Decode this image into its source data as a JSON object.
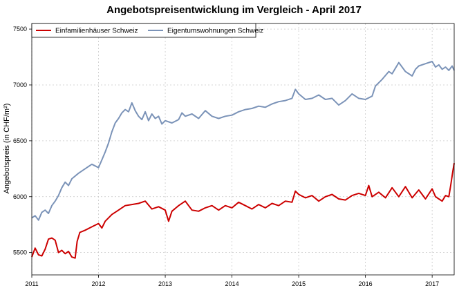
{
  "chart_data": {
    "type": "line",
    "title": "Angebotspreisentwicklung im Vergleich - April 2017",
    "ylabel": "Angebotspreis (in CHF/m²)",
    "xlabel": "",
    "xlim": [
      2011.0,
      2017.33
    ],
    "ylim": [
      5300,
      7550
    ],
    "x_ticks": [
      2011,
      2012,
      2013,
      2014,
      2015,
      2016,
      2017
    ],
    "x_tick_labels": [
      "2011",
      "2012",
      "2013",
      "2014",
      "2015",
      "2016",
      "2017"
    ],
    "y_ticks": [
      5500,
      6000,
      6500,
      7000,
      7500
    ],
    "y_tick_labels": [
      "5500",
      "6000",
      "6500",
      "7000",
      "7500"
    ],
    "grid": true,
    "legend_position": "top-left",
    "series": [
      {
        "name": "Einfamilienhäuser Schweiz",
        "color": "#cc0000",
        "points": [
          [
            2011.0,
            5460
          ],
          [
            2011.05,
            5540
          ],
          [
            2011.1,
            5480
          ],
          [
            2011.15,
            5470
          ],
          [
            2011.2,
            5530
          ],
          [
            2011.25,
            5620
          ],
          [
            2011.3,
            5630
          ],
          [
            2011.35,
            5610
          ],
          [
            2011.4,
            5500
          ],
          [
            2011.45,
            5520
          ],
          [
            2011.5,
            5490
          ],
          [
            2011.55,
            5510
          ],
          [
            2011.6,
            5460
          ],
          [
            2011.65,
            5450
          ],
          [
            2011.68,
            5600
          ],
          [
            2011.72,
            5680
          ],
          [
            2011.8,
            5700
          ],
          [
            2011.9,
            5730
          ],
          [
            2012.0,
            5760
          ],
          [
            2012.05,
            5720
          ],
          [
            2012.1,
            5780
          ],
          [
            2012.2,
            5840
          ],
          [
            2012.3,
            5880
          ],
          [
            2012.4,
            5920
          ],
          [
            2012.5,
            5930
          ],
          [
            2012.6,
            5940
          ],
          [
            2012.7,
            5960
          ],
          [
            2012.8,
            5890
          ],
          [
            2012.9,
            5910
          ],
          [
            2013.0,
            5880
          ],
          [
            2013.05,
            5780
          ],
          [
            2013.1,
            5870
          ],
          [
            2013.2,
            5920
          ],
          [
            2013.3,
            5960
          ],
          [
            2013.4,
            5880
          ],
          [
            2013.5,
            5870
          ],
          [
            2013.6,
            5900
          ],
          [
            2013.7,
            5920
          ],
          [
            2013.8,
            5880
          ],
          [
            2013.9,
            5920
          ],
          [
            2014.0,
            5900
          ],
          [
            2014.1,
            5950
          ],
          [
            2014.2,
            5920
          ],
          [
            2014.3,
            5890
          ],
          [
            2014.4,
            5930
          ],
          [
            2014.5,
            5900
          ],
          [
            2014.6,
            5940
          ],
          [
            2014.7,
            5920
          ],
          [
            2014.8,
            5960
          ],
          [
            2014.9,
            5950
          ],
          [
            2014.95,
            6050
          ],
          [
            2015.0,
            6020
          ],
          [
            2015.1,
            5990
          ],
          [
            2015.2,
            6010
          ],
          [
            2015.3,
            5960
          ],
          [
            2015.4,
            6000
          ],
          [
            2015.5,
            6020
          ],
          [
            2015.6,
            5980
          ],
          [
            2015.7,
            5970
          ],
          [
            2015.8,
            6010
          ],
          [
            2015.9,
            6030
          ],
          [
            2016.0,
            6010
          ],
          [
            2016.05,
            6100
          ],
          [
            2016.1,
            6000
          ],
          [
            2016.2,
            6040
          ],
          [
            2016.3,
            5990
          ],
          [
            2016.4,
            6080
          ],
          [
            2016.5,
            6000
          ],
          [
            2016.6,
            6090
          ],
          [
            2016.7,
            5990
          ],
          [
            2016.8,
            6060
          ],
          [
            2016.9,
            5980
          ],
          [
            2017.0,
            6070
          ],
          [
            2017.05,
            6000
          ],
          [
            2017.1,
            5980
          ],
          [
            2017.15,
            5960
          ],
          [
            2017.2,
            6010
          ],
          [
            2017.25,
            6000
          ],
          [
            2017.28,
            6110
          ],
          [
            2017.31,
            6230
          ],
          [
            2017.33,
            6300
          ]
        ]
      },
      {
        "name": "Eigentumswohnungen Schweiz",
        "color": "#7b93b8",
        "points": [
          [
            2011.0,
            5810
          ],
          [
            2011.05,
            5830
          ],
          [
            2011.1,
            5790
          ],
          [
            2011.15,
            5860
          ],
          [
            2011.2,
            5880
          ],
          [
            2011.25,
            5850
          ],
          [
            2011.3,
            5920
          ],
          [
            2011.35,
            5960
          ],
          [
            2011.4,
            6010
          ],
          [
            2011.45,
            6080
          ],
          [
            2011.5,
            6130
          ],
          [
            2011.55,
            6100
          ],
          [
            2011.6,
            6160
          ],
          [
            2011.7,
            6210
          ],
          [
            2011.8,
            6250
          ],
          [
            2011.9,
            6290
          ],
          [
            2012.0,
            6260
          ],
          [
            2012.05,
            6330
          ],
          [
            2012.1,
            6400
          ],
          [
            2012.15,
            6480
          ],
          [
            2012.2,
            6580
          ],
          [
            2012.25,
            6660
          ],
          [
            2012.3,
            6700
          ],
          [
            2012.35,
            6750
          ],
          [
            2012.4,
            6780
          ],
          [
            2012.45,
            6760
          ],
          [
            2012.5,
            6840
          ],
          [
            2012.55,
            6770
          ],
          [
            2012.6,
            6720
          ],
          [
            2012.65,
            6690
          ],
          [
            2012.7,
            6760
          ],
          [
            2012.75,
            6680
          ],
          [
            2012.8,
            6740
          ],
          [
            2012.85,
            6700
          ],
          [
            2012.9,
            6720
          ],
          [
            2012.95,
            6650
          ],
          [
            2013.0,
            6680
          ],
          [
            2013.1,
            6660
          ],
          [
            2013.2,
            6690
          ],
          [
            2013.25,
            6750
          ],
          [
            2013.3,
            6720
          ],
          [
            2013.4,
            6740
          ],
          [
            2013.5,
            6700
          ],
          [
            2013.6,
            6770
          ],
          [
            2013.7,
            6720
          ],
          [
            2013.8,
            6700
          ],
          [
            2013.9,
            6720
          ],
          [
            2014.0,
            6730
          ],
          [
            2014.1,
            6760
          ],
          [
            2014.2,
            6780
          ],
          [
            2014.3,
            6790
          ],
          [
            2014.4,
            6810
          ],
          [
            2014.5,
            6800
          ],
          [
            2014.6,
            6830
          ],
          [
            2014.7,
            6850
          ],
          [
            2014.8,
            6860
          ],
          [
            2014.9,
            6880
          ],
          [
            2014.95,
            6960
          ],
          [
            2015.0,
            6920
          ],
          [
            2015.1,
            6870
          ],
          [
            2015.2,
            6880
          ],
          [
            2015.3,
            6910
          ],
          [
            2015.4,
            6870
          ],
          [
            2015.5,
            6880
          ],
          [
            2015.6,
            6820
          ],
          [
            2015.7,
            6860
          ],
          [
            2015.8,
            6920
          ],
          [
            2015.9,
            6880
          ],
          [
            2016.0,
            6870
          ],
          [
            2016.1,
            6900
          ],
          [
            2016.15,
            6990
          ],
          [
            2016.25,
            7050
          ],
          [
            2016.35,
            7120
          ],
          [
            2016.4,
            7100
          ],
          [
            2016.5,
            7200
          ],
          [
            2016.55,
            7160
          ],
          [
            2016.6,
            7120
          ],
          [
            2016.7,
            7080
          ],
          [
            2016.75,
            7140
          ],
          [
            2016.8,
            7170
          ],
          [
            2016.9,
            7190
          ],
          [
            2017.0,
            7210
          ],
          [
            2017.05,
            7160
          ],
          [
            2017.1,
            7180
          ],
          [
            2017.15,
            7140
          ],
          [
            2017.2,
            7160
          ],
          [
            2017.25,
            7130
          ],
          [
            2017.3,
            7170
          ],
          [
            2017.33,
            7130
          ]
        ]
      }
    ]
  }
}
